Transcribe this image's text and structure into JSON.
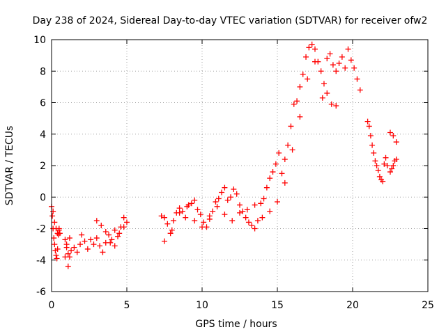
{
  "chart_data": {
    "type": "scatter",
    "title": "Day 238 of 2024, Sidereal Day-to-day VTEC variation (SDTVAR) for receiver ofw2",
    "xlabel": "GPS time / hours",
    "ylabel": "SDTVAR / TECUs",
    "xlim": [
      0,
      25
    ],
    "ylim": [
      -6,
      10
    ],
    "xticks": [
      0,
      5,
      10,
      15,
      20,
      25
    ],
    "yticks": [
      -6,
      -4,
      -2,
      0,
      2,
      4,
      6,
      8,
      10
    ],
    "xtick_labels": [
      "0",
      "5",
      "10",
      "15",
      "20",
      "25"
    ],
    "ytick_labels": [
      "-6",
      "-4",
      "-2",
      "0",
      "2",
      "4",
      "6",
      "8",
      "10"
    ],
    "grid": true,
    "marker": "plus",
    "color": "#ff0000",
    "series": [
      {
        "name": "SDTVAR",
        "x": [
          0.0,
          0.05,
          0.1,
          0.15,
          0.2,
          0.25,
          0.3,
          0.35,
          0.4,
          0.45,
          0.5,
          0.55,
          0.1,
          0.2,
          0.3,
          0.4,
          0.5,
          0.9,
          1.0,
          1.1,
          1.2,
          1.0,
          1.2,
          1.3,
          1.5,
          1.7,
          1.9,
          2.0,
          2.2,
          2.4,
          2.6,
          2.8,
          3.0,
          3.2,
          3.4,
          3.6,
          3.8,
          4.0,
          4.2,
          4.4,
          4.6,
          4.8,
          5.0,
          3.0,
          3.3,
          3.6,
          3.9,
          4.2,
          4.5,
          4.8,
          7.3,
          7.5,
          7.7,
          7.9,
          8.1,
          8.3,
          8.5,
          8.7,
          8.9,
          9.1,
          9.3,
          9.5,
          9.7,
          9.9,
          10.1,
          10.3,
          10.5,
          10.7,
          10.9,
          11.1,
          11.3,
          11.5,
          11.7,
          11.9,
          12.1,
          12.3,
          12.5,
          12.7,
          12.9,
          13.1,
          13.3,
          13.5,
          13.7,
          13.9,
          14.1,
          14.3,
          14.5,
          14.7,
          14.9,
          15.1,
          15.3,
          15.5,
          15.7,
          15.9,
          16.1,
          16.3,
          16.5,
          16.7,
          16.9,
          17.1,
          17.3,
          17.5,
          17.7,
          17.9,
          18.1,
          18.3,
          18.5,
          18.7,
          18.9,
          19.1,
          19.3,
          19.5,
          19.7,
          19.9,
          20.1,
          20.3,
          20.5,
          18.0,
          18.3,
          18.6,
          18.9,
          7.5,
          8.0,
          8.5,
          9.0,
          9.5,
          10.0,
          10.5,
          11.0,
          11.5,
          12.0,
          12.5,
          13.0,
          13.5,
          14.0,
          14.5,
          15.0,
          15.5,
          16.0,
          16.5,
          17.0,
          17.5,
          21.0,
          21.1,
          21.2,
          21.3,
          21.4,
          21.5,
          21.6,
          21.7,
          21.8,
          21.9,
          22.0,
          22.1,
          22.2,
          22.3,
          22.5,
          22.6,
          22.7,
          22.8,
          22.9,
          22.5,
          22.7,
          22.9,
          0.9,
          1.1
        ],
        "y": [
          -0.6,
          -1.2,
          -2.0,
          -2.6,
          -3.0,
          -3.4,
          -3.7,
          -3.9,
          -3.3,
          -2.4,
          -2.1,
          -2.3,
          -0.9,
          -1.6,
          -2.0,
          -2.3,
          -2.0,
          -2.7,
          -3.2,
          -3.6,
          -3.8,
          -3.0,
          -2.6,
          -3.4,
          -3.2,
          -3.5,
          -3.0,
          -2.4,
          -2.8,
          -3.3,
          -2.7,
          -3.0,
          -2.6,
          -3.1,
          -3.5,
          -2.9,
          -2.4,
          -2.7,
          -2.1,
          -2.5,
          -1.9,
          -1.3,
          -1.6,
          -1.5,
          -1.8,
          -2.2,
          -2.9,
          -3.1,
          -2.3,
          -1.9,
          -1.2,
          -2.8,
          -1.7,
          -2.3,
          -1.5,
          -1.0,
          -0.7,
          -0.9,
          -1.3,
          -0.5,
          -0.4,
          -0.2,
          -0.8,
          -1.1,
          -1.6,
          -1.9,
          -1.4,
          -0.9,
          -0.3,
          -0.1,
          0.3,
          0.6,
          -0.2,
          0.0,
          0.5,
          0.2,
          -0.5,
          -0.9,
          -1.3,
          -1.6,
          -1.8,
          -2.0,
          -1.5,
          -0.4,
          -0.1,
          0.6,
          1.2,
          1.6,
          2.1,
          2.8,
          1.5,
          2.4,
          3.3,
          4.5,
          5.9,
          6.1,
          7.0,
          7.8,
          8.9,
          9.5,
          9.7,
          9.4,
          8.6,
          8.0,
          7.2,
          8.8,
          9.1,
          8.4,
          8.0,
          8.5,
          8.9,
          8.2,
          9.4,
          8.7,
          8.2,
          7.5,
          6.8,
          6.3,
          6.6,
          5.9,
          5.8,
          -1.3,
          -2.1,
          -1.0,
          -0.6,
          -1.5,
          -1.9,
          -1.2,
          -0.6,
          -1.1,
          -1.5,
          -1.0,
          -0.8,
          -0.5,
          -1.3,
          -0.9,
          -0.3,
          0.9,
          3.0,
          5.1,
          7.5,
          8.6,
          4.8,
          4.5,
          3.9,
          3.3,
          2.8,
          2.3,
          2.0,
          1.7,
          1.3,
          1.1,
          1.0,
          2.1,
          2.5,
          2.0,
          1.6,
          1.8,
          2.0,
          2.3,
          2.4,
          4.1,
          3.9,
          3.5,
          -3.8,
          -4.4
        ]
      }
    ]
  }
}
